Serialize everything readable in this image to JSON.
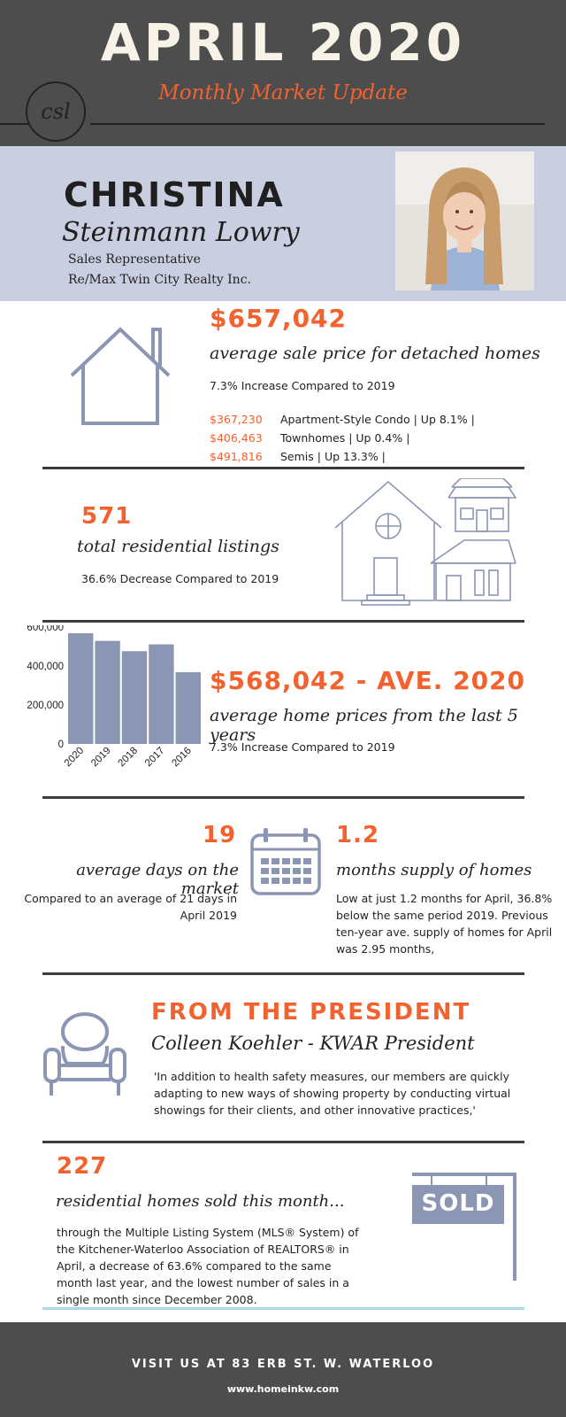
{
  "header": {
    "title": "APRIL 2020",
    "subtitle": "Monthly Market Update",
    "logo_text": "csl"
  },
  "agent": {
    "first_name": "CHRISTINA",
    "last_name": "Steinmann Lowry",
    "role": "Sales Representative",
    "company": "Re/Max Twin City Realty Inc.",
    "photo_icon": "agent-portrait"
  },
  "detached": {
    "price": "$657,042",
    "label": "average sale price for detached homes",
    "change": "7.3% Increase Compared to 2019",
    "breakdown": [
      {
        "price": "$367,230",
        "text": "Apartment-Style Condo  | Up 8.1% |"
      },
      {
        "price": "$406,463",
        "text": "Townhomes  | Up 0.4% |"
      },
      {
        "price": "$491,816",
        "text": "Semis  | Up 13.3% |"
      }
    ]
  },
  "listings": {
    "count": "571",
    "label": "total residential listings",
    "change": "36.6% Decrease Compared to 2019"
  },
  "five_year": {
    "headline": "$568,042 - AVE. 2020",
    "label": "average home prices from the last 5 years",
    "change": "7.3% Increase Compared to 2019"
  },
  "chart_data": {
    "type": "bar",
    "categories": [
      "2020",
      "2019",
      "2018",
      "2017",
      "2016"
    ],
    "values": [
      568042,
      529000,
      476000,
      511000,
      368000
    ],
    "ylim": [
      0,
      600000
    ],
    "yticks": [
      "600,000",
      "400,000",
      "200,000",
      "0"
    ],
    "ytick_values": [
      600000,
      400000,
      200000,
      0
    ],
    "bar_color": "#8a96b3",
    "grid": false
  },
  "days": {
    "count": "19",
    "label": "average days on the market",
    "note": "Compared to an average of 21 days in April 2019"
  },
  "supply": {
    "count": "1.2",
    "label": "months supply of homes",
    "note": "Low at just 1.2 months for April, 36.8% below the same period 2019. Previous ten-year ave. supply of homes for April was 2.95 months,"
  },
  "president": {
    "heading": "FROM THE PRESIDENT",
    "name": "Colleen Koehler - KWAR President",
    "quote": "'In addition to health safety measures, our members are quickly adapting to new ways of showing property by conducting virtual showings for their clients, and other innovative practices,'"
  },
  "sold": {
    "count": "227",
    "label": "residential homes sold this month...",
    "body": "through the Multiple Listing System (MLS® System) of the Kitchener-Waterloo Association of REALTORS® in April, a decrease of 63.6% compared to the same month last year, and the lowest number of sales in a single month since December 2008.",
    "sign_text": "SOLD"
  },
  "footer": {
    "visit": "VISIT US AT 83 ERB ST. W. WATERLOO",
    "website": "www.homeinkw.com"
  },
  "colors": {
    "accent": "#f2622e",
    "slate": "#8a96b3",
    "header_bg": "#4d4d4d",
    "band_bg": "#c9cfe0"
  }
}
